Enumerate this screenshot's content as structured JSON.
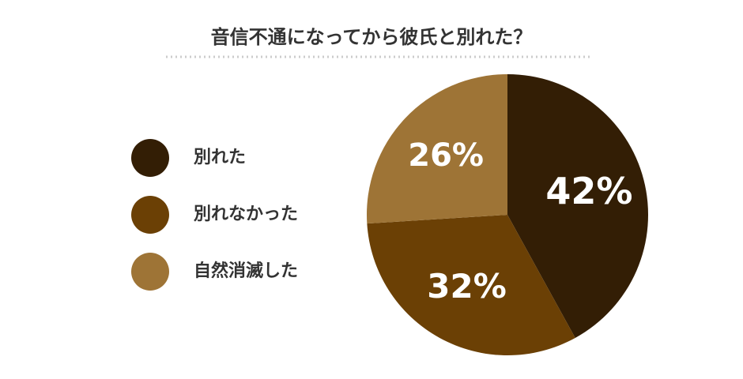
{
  "chart_data": {
    "type": "pie",
    "title": "音信不通になってから彼氏と別れた？",
    "categories": [
      "別れた",
      "別れなかった",
      "自然消滅した"
    ],
    "values": [
      42,
      32,
      26
    ],
    "value_labels": [
      "42%",
      "32%",
      "26%"
    ],
    "colors": [
      "#331e05",
      "#6b4005",
      "#9e7436"
    ],
    "legend": "left"
  }
}
